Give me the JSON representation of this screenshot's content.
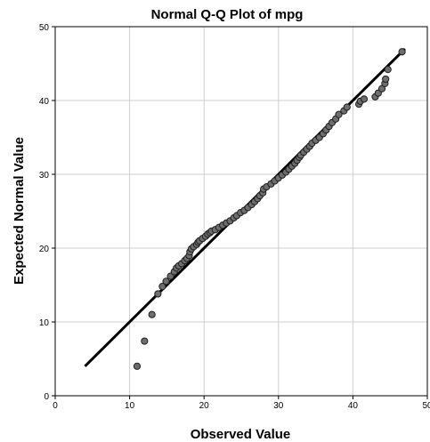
{
  "chart_data": {
    "type": "scatter",
    "title": "Normal Q-Q Plot of mpg",
    "xlabel": "Observed Value",
    "ylabel": "Expected Normal Value",
    "xlim": [
      0,
      50
    ],
    "ylim": [
      0,
      50
    ],
    "xticks": [
      0,
      10,
      20,
      30,
      40,
      50
    ],
    "yticks": [
      0,
      10,
      20,
      30,
      40,
      50
    ],
    "grid": true,
    "reference_line": {
      "x": [
        4,
        47
      ],
      "y": [
        4,
        47
      ]
    },
    "points": [
      [
        11.0,
        4.0
      ],
      [
        12.0,
        7.4
      ],
      [
        13.0,
        11.0
      ],
      [
        13.8,
        13.8
      ],
      [
        14.4,
        14.8
      ],
      [
        14.9,
        15.5
      ],
      [
        15.5,
        16.2
      ],
      [
        16.0,
        16.8
      ],
      [
        16.3,
        17.3
      ],
      [
        16.6,
        17.6
      ],
      [
        17.0,
        17.9
      ],
      [
        17.4,
        18.3
      ],
      [
        17.7,
        18.6
      ],
      [
        18.0,
        19.0
      ],
      [
        18.1,
        19.5
      ],
      [
        18.3,
        19.9
      ],
      [
        18.6,
        20.2
      ],
      [
        19.0,
        20.5
      ],
      [
        19.2,
        20.8
      ],
      [
        19.4,
        21.0
      ],
      [
        19.8,
        21.3
      ],
      [
        20.2,
        21.6
      ],
      [
        20.5,
        21.9
      ],
      [
        20.8,
        22.1
      ],
      [
        21.0,
        22.3
      ],
      [
        21.5,
        22.5
      ],
      [
        22.0,
        22.8
      ],
      [
        22.5,
        23.1
      ],
      [
        23.0,
        23.4
      ],
      [
        23.5,
        23.7
      ],
      [
        24.0,
        24.1
      ],
      [
        24.4,
        24.4
      ],
      [
        24.9,
        24.8
      ],
      [
        25.4,
        25.1
      ],
      [
        25.9,
        25.5
      ],
      [
        26.4,
        25.9
      ],
      [
        26.8,
        26.3
      ],
      [
        27.2,
        26.7
      ],
      [
        27.5,
        27.1
      ],
      [
        27.9,
        27.5
      ],
      [
        28.0,
        28.0
      ],
      [
        28.4,
        28.3
      ],
      [
        29.0,
        28.7
      ],
      [
        29.5,
        29.1
      ],
      [
        30.0,
        29.5
      ],
      [
        30.5,
        29.9
      ],
      [
        31.0,
        30.3
      ],
      [
        31.4,
        30.7
      ],
      [
        31.8,
        31.1
      ],
      [
        32.2,
        31.5
      ],
      [
        32.5,
        31.9
      ],
      [
        32.8,
        32.3
      ],
      [
        33.0,
        32.6
      ],
      [
        33.4,
        33.0
      ],
      [
        33.8,
        33.4
      ],
      [
        34.2,
        33.8
      ],
      [
        34.5,
        34.2
      ],
      [
        35.0,
        34.6
      ],
      [
        35.5,
        35.0
      ],
      [
        36.0,
        35.5
      ],
      [
        36.4,
        36.0
      ],
      [
        36.8,
        36.5
      ],
      [
        37.2,
        37.0
      ],
      [
        37.7,
        37.5
      ],
      [
        38.1,
        38.1
      ],
      [
        38.8,
        38.6
      ],
      [
        39.2,
        39.1
      ],
      [
        40.8,
        39.5
      ],
      [
        41.0,
        39.9
      ],
      [
        41.5,
        40.2
      ],
      [
        43.0,
        40.5
      ],
      [
        43.4,
        41.0
      ],
      [
        43.9,
        41.6
      ],
      [
        44.3,
        42.3
      ],
      [
        44.4,
        42.9
      ],
      [
        44.7,
        44.2
      ],
      [
        46.6,
        46.6
      ]
    ]
  }
}
